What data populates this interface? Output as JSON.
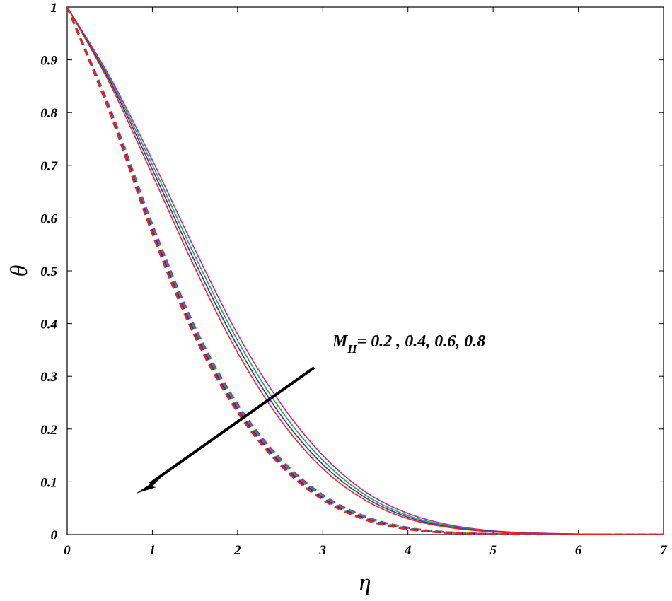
{
  "chart_data": {
    "type": "line",
    "xlabel": "η",
    "ylabel": "θ",
    "xlim": [
      0,
      7
    ],
    "ylim": [
      0,
      1
    ],
    "xticks": [
      "0",
      "1",
      "2",
      "3",
      "4",
      "5",
      "6",
      "7"
    ],
    "yticks": [
      "0",
      "0.1",
      "0.2",
      "0.3",
      "0.4",
      "0.5",
      "0.6",
      "0.7",
      "0.8",
      "0.9",
      "1"
    ],
    "grid": false,
    "annotation": {
      "base": "M",
      "subscript": "H",
      "text": "= 0.2 , 0.4, 0.6, 0.8"
    },
    "arrow_direction": "down-left",
    "x": [
      0,
      0.5,
      1,
      1.5,
      2,
      2.5,
      3,
      3.5,
      4,
      4.5,
      5,
      5.5,
      6,
      6.5,
      7
    ],
    "series": [
      {
        "style": "solid",
        "color": "#ee2222",
        "values": [
          1.0,
          0.855,
          0.682,
          0.505,
          0.345,
          0.218,
          0.125,
          0.065,
          0.03,
          0.013,
          0.005,
          0.002,
          0.001,
          0.0,
          0.0
        ]
      },
      {
        "style": "solid",
        "color": "#2233cc",
        "values": [
          1.0,
          0.86,
          0.692,
          0.517,
          0.357,
          0.228,
          0.133,
          0.07,
          0.033,
          0.014,
          0.006,
          0.002,
          0.001,
          0.0,
          0.0
        ]
      },
      {
        "style": "solid",
        "color": "#22aa22",
        "values": [
          1.0,
          0.864,
          0.701,
          0.528,
          0.368,
          0.238,
          0.141,
          0.075,
          0.036,
          0.016,
          0.006,
          0.002,
          0.001,
          0.0,
          0.0
        ]
      },
      {
        "style": "solid",
        "color": "#bb22bb",
        "values": [
          1.0,
          0.868,
          0.71,
          0.54,
          0.38,
          0.25,
          0.15,
          0.081,
          0.04,
          0.018,
          0.007,
          0.003,
          0.001,
          0.0,
          0.0
        ]
      },
      {
        "style": "dashed",
        "color": "#ee2222",
        "values": [
          1.0,
          0.8,
          0.57,
          0.375,
          0.232,
          0.132,
          0.066,
          0.028,
          0.01,
          0.003,
          0.001,
          0.0,
          0.0,
          0.0,
          0.0
        ]
      },
      {
        "style": "dashed",
        "color": "#2233cc",
        "values": [
          1.0,
          0.803,
          0.576,
          0.381,
          0.237,
          0.136,
          0.069,
          0.03,
          0.011,
          0.003,
          0.001,
          0.0,
          0.0,
          0.0,
          0.0
        ]
      },
      {
        "style": "dashed",
        "color": "#22aa22",
        "values": [
          1.0,
          0.806,
          0.582,
          0.387,
          0.242,
          0.14,
          0.072,
          0.032,
          0.012,
          0.004,
          0.001,
          0.0,
          0.0,
          0.0,
          0.0
        ]
      },
      {
        "style": "dashed",
        "color": "#bb22bb",
        "values": [
          1.0,
          0.809,
          0.588,
          0.393,
          0.247,
          0.144,
          0.075,
          0.034,
          0.013,
          0.004,
          0.001,
          0.0,
          0.0,
          0.0,
          0.0
        ]
      }
    ]
  }
}
